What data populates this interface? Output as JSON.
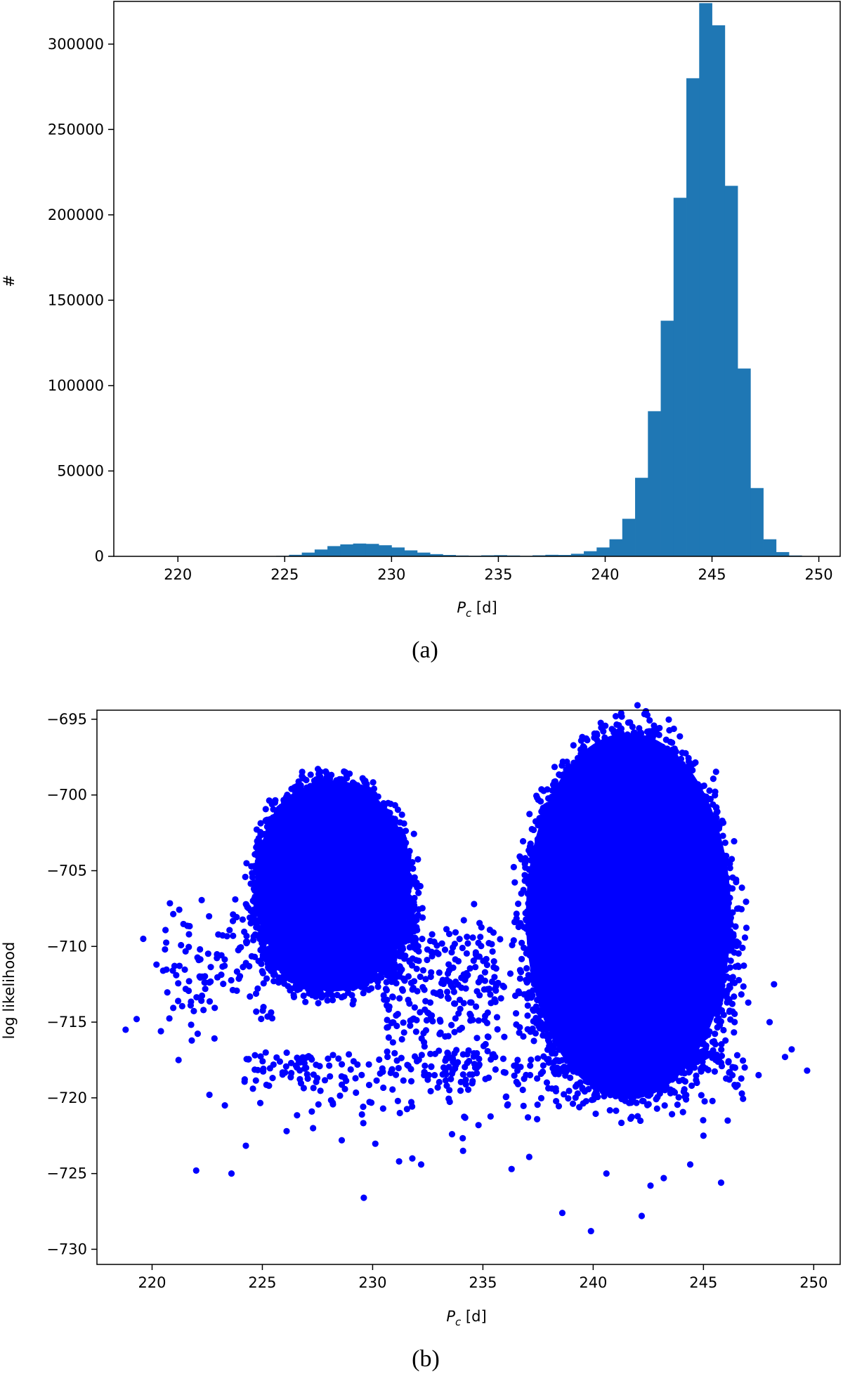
{
  "chart_data": [
    {
      "type": "bar",
      "panel_caption": "(a)",
      "xlabel_main": "P",
      "xlabel_sub": "c",
      "xlabel_unit": " [d]",
      "ylabel": "#",
      "xlim": [
        217,
        251
      ],
      "ylim": [
        0,
        325000
      ],
      "xticks": [
        220,
        225,
        230,
        235,
        240,
        245,
        250
      ],
      "yticks": [
        0,
        50000,
        100000,
        150000,
        200000,
        250000,
        300000
      ],
      "bar_color": "#1f77b4",
      "bin_width": 0.6,
      "bin_start": 218.6,
      "values": [
        0,
        0,
        0,
        0,
        0,
        0,
        0,
        0,
        0,
        0,
        300,
        900,
        2200,
        4000,
        6000,
        7000,
        7500,
        7300,
        6500,
        5200,
        3500,
        2200,
        1300,
        800,
        500,
        400,
        600,
        700,
        500,
        300,
        600,
        900,
        800,
        1500,
        3000,
        5200,
        10000,
        22000,
        46000,
        85000,
        138000,
        210000,
        280000,
        324000,
        311000,
        217000,
        110000,
        40000,
        10000,
        2500,
        500,
        0,
        0,
        0,
        0,
        0
      ]
    },
    {
      "type": "scatter",
      "panel_caption": "(b)",
      "xlabel_main": "P",
      "xlabel_sub": "c",
      "xlabel_unit": " [d]",
      "ylabel": "log likelihood",
      "xlim": [
        217.5,
        251.2
      ],
      "ylim": [
        -731,
        -694.4
      ],
      "xticks": [
        220,
        225,
        230,
        235,
        240,
        245,
        250
      ],
      "yticks": [
        -695,
        -700,
        -705,
        -710,
        -715,
        -720,
        -725,
        -730
      ],
      "point_color": "#0000ff",
      "clusters": [
        {
          "center_x": 228.2,
          "top_y": -698.5,
          "bottom_y": -713.5,
          "half_width": 3.8
        },
        {
          "center_x": 241.6,
          "top_y": -695.0,
          "bottom_y": -721.0,
          "half_width": 5.0
        }
      ],
      "outliers": [
        [
          218.8,
          -715.5
        ],
        [
          219.3,
          -714.8
        ],
        [
          219.6,
          -709.5
        ],
        [
          220.2,
          -711.2
        ],
        [
          220.4,
          -715.6
        ],
        [
          221.2,
          -717.5
        ],
        [
          222.0,
          -724.8
        ],
        [
          222.6,
          -719.8
        ],
        [
          223.3,
          -720.5
        ],
        [
          223.6,
          -725.0
        ],
        [
          225.3,
          -719.2
        ],
        [
          226.1,
          -722.2
        ],
        [
          227.3,
          -722.0
        ],
        [
          228.6,
          -722.8
        ],
        [
          229.6,
          -726.6
        ],
        [
          231.2,
          -724.2
        ],
        [
          231.8,
          -724.0
        ],
        [
          232.2,
          -724.4
        ],
        [
          232.5,
          -718.8
        ],
        [
          233.6,
          -722.4
        ],
        [
          234.1,
          -723.5
        ],
        [
          234.8,
          -721.8
        ],
        [
          236.3,
          -724.7
        ],
        [
          237.1,
          -723.9
        ],
        [
          238.6,
          -727.6
        ],
        [
          239.9,
          -728.8
        ],
        [
          240.6,
          -725.0
        ],
        [
          242.2,
          -727.8
        ],
        [
          242.6,
          -725.8
        ],
        [
          243.2,
          -725.3
        ],
        [
          244.4,
          -724.4
        ],
        [
          245.0,
          -722.5
        ],
        [
          245.8,
          -725.6
        ],
        [
          246.1,
          -721.5
        ],
        [
          247.5,
          -718.5
        ],
        [
          248.0,
          -715.0
        ],
        [
          248.2,
          -712.5
        ],
        [
          248.7,
          -717.3
        ],
        [
          249.0,
          -716.8
        ],
        [
          249.7,
          -718.2
        ]
      ]
    }
  ]
}
